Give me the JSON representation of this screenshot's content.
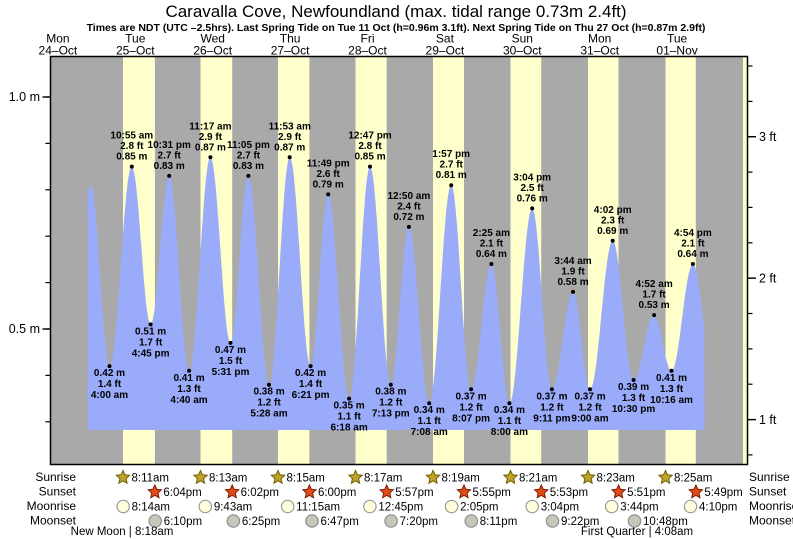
{
  "header": {
    "title": "Caravalla Cove, Newfoundland (max. tidal range 0.73m 2.4ft)",
    "subtitle": "Times are NDT (UTC –2.5hrs). Last Spring Tide on Tue 11 Oct (h=0.96m 3.1ft). Next Spring Tide on Thu 27 Oct (h=0.87m 2.9ft)"
  },
  "days": [
    {
      "dow": "Mon",
      "date": "24–Oct"
    },
    {
      "dow": "Tue",
      "date": "25–Oct"
    },
    {
      "dow": "Wed",
      "date": "26–Oct"
    },
    {
      "dow": "Thu",
      "date": "27–Oct"
    },
    {
      "dow": "Fri",
      "date": "28–Oct"
    },
    {
      "dow": "Sat",
      "date": "29–Oct"
    },
    {
      "dow": "Sun",
      "date": "30–Oct"
    },
    {
      "dow": "Mon",
      "date": "31–Oct"
    },
    {
      "dow": "Tue",
      "date": "01–Nov"
    }
  ],
  "chart_data": {
    "type": "area",
    "ylabel_left_unit": "m",
    "ylabel_right_unit": "ft",
    "ylim_m": [
      0.2,
      1.09
    ],
    "grid": false,
    "y_axis_left": {
      "ticks": [
        {
          "v": 1.0,
          "label": "1.0 m"
        },
        {
          "v": 0.5,
          "label": "0.5 m"
        }
      ],
      "minor_step_m": 0.1
    },
    "y_axis_right": {
      "ticks": [
        {
          "ft": 3,
          "label": "3 ft"
        },
        {
          "ft": 2,
          "label": "2 ft"
        },
        {
          "ft": 1,
          "label": "1 ft"
        }
      ],
      "minor_step_ft": 0.25
    },
    "tide_events": [
      {
        "day": 0,
        "time": "10:10 pm",
        "type": "high",
        "height_m": "0.81 m",
        "height_ft": "2.7 ft",
        "labeled": false
      },
      {
        "day": 1,
        "time": "4:00 am",
        "type": "low",
        "height_m": "0.42 m",
        "height_ft": "1.4 ft",
        "labeled": true
      },
      {
        "day": 1,
        "time": "10:55 am",
        "type": "high",
        "height_m": "0.85 m",
        "height_ft": "2.8 ft",
        "labeled": true
      },
      {
        "day": 1,
        "time": "4:45 pm",
        "type": "low",
        "height_m": "0.51 m",
        "height_ft": "1.7 ft",
        "labeled": true
      },
      {
        "day": 1,
        "time": "10:31 pm",
        "type": "high",
        "height_m": "0.83 m",
        "height_ft": "2.7 ft",
        "labeled": true
      },
      {
        "day": 2,
        "time": "4:40 am",
        "type": "low",
        "height_m": "0.41 m",
        "height_ft": "1.3 ft",
        "labeled": true
      },
      {
        "day": 2,
        "time": "11:17 am",
        "type": "high",
        "height_m": "0.87 m",
        "height_ft": "2.9 ft",
        "labeled": true
      },
      {
        "day": 2,
        "time": "5:31 pm",
        "type": "low",
        "height_m": "0.47 m",
        "height_ft": "1.5 ft",
        "labeled": true
      },
      {
        "day": 2,
        "time": "11:05 pm",
        "type": "high",
        "height_m": "0.83 m",
        "height_ft": "2.7 ft",
        "labeled": true
      },
      {
        "day": 3,
        "time": "5:28 am",
        "type": "low",
        "height_m": "0.38 m",
        "height_ft": "1.2 ft",
        "labeled": true
      },
      {
        "day": 3,
        "time": "11:53 am",
        "type": "high",
        "height_m": "0.87 m",
        "height_ft": "2.9 ft",
        "labeled": true
      },
      {
        "day": 3,
        "time": "6:21 pm",
        "type": "low",
        "height_m": "0.42 m",
        "height_ft": "1.4 ft",
        "labeled": true
      },
      {
        "day": 3,
        "time": "11:49 pm",
        "type": "high",
        "height_m": "0.79 m",
        "height_ft": "2.6 ft",
        "labeled": true
      },
      {
        "day": 4,
        "time": "6:18 am",
        "type": "low",
        "height_m": "0.35 m",
        "height_ft": "1.1 ft",
        "labeled": true
      },
      {
        "day": 4,
        "time": "12:47 pm",
        "type": "high",
        "height_m": "0.85 m",
        "height_ft": "2.8 ft",
        "labeled": true
      },
      {
        "day": 4,
        "time": "7:13 pm",
        "type": "low",
        "height_m": "0.38 m",
        "height_ft": "1.2 ft",
        "labeled": true
      },
      {
        "day": 5,
        "time": "12:50 am",
        "type": "high",
        "height_m": "0.72 m",
        "height_ft": "2.4 ft",
        "labeled": true
      },
      {
        "day": 5,
        "time": "7:08 am",
        "type": "low",
        "height_m": "0.34 m",
        "height_ft": "1.1 ft",
        "labeled": true
      },
      {
        "day": 5,
        "time": "1:57 pm",
        "type": "high",
        "height_m": "0.81 m",
        "height_ft": "2.7 ft",
        "labeled": true
      },
      {
        "day": 5,
        "time": "8:07 pm",
        "type": "low",
        "height_m": "0.37 m",
        "height_ft": "1.2 ft",
        "labeled": true
      },
      {
        "day": 6,
        "time": "2:25 am",
        "type": "high",
        "height_m": "0.64 m",
        "height_ft": "2.1 ft",
        "labeled": true
      },
      {
        "day": 6,
        "time": "8:00 am",
        "type": "low",
        "height_m": "0.34 m",
        "height_ft": "1.1 ft",
        "labeled": true
      },
      {
        "day": 6,
        "time": "3:04 pm",
        "type": "high",
        "height_m": "0.76 m",
        "height_ft": "2.5 ft",
        "labeled": true
      },
      {
        "day": 6,
        "time": "9:11 pm",
        "type": "low",
        "height_m": "0.37 m",
        "height_ft": "1.2 ft",
        "labeled": true
      },
      {
        "day": 7,
        "time": "3:44 am",
        "type": "high",
        "height_m": "0.58 m",
        "height_ft": "1.9 ft",
        "labeled": true
      },
      {
        "day": 7,
        "time": "9:00 am",
        "type": "low",
        "height_m": "0.37 m",
        "height_ft": "1.2 ft",
        "labeled": true
      },
      {
        "day": 7,
        "time": "4:02 pm",
        "type": "high",
        "height_m": "0.69 m",
        "height_ft": "2.3 ft",
        "labeled": true
      },
      {
        "day": 7,
        "time": "10:30 pm",
        "type": "low",
        "height_m": "0.39 m",
        "height_ft": "1.3 ft",
        "labeled": true
      },
      {
        "day": 8,
        "time": "4:52 am",
        "type": "high",
        "height_m": "0.53 m",
        "height_ft": "1.7 ft",
        "labeled": true
      },
      {
        "day": 8,
        "time": "10:16 am",
        "type": "low",
        "height_m": "0.41 m",
        "height_ft": "1.3 ft",
        "labeled": true
      },
      {
        "day": 8,
        "time": "4:54 pm",
        "type": "high",
        "height_m": "0.64 m",
        "height_ft": "2.1 ft",
        "labeled": true
      }
    ]
  },
  "astronomy": {
    "rows": [
      {
        "id": "sunrise",
        "label": "Sunrise",
        "events": [
          {
            "day": 1,
            "time": "8:11am"
          },
          {
            "day": 2,
            "time": "8:13am"
          },
          {
            "day": 3,
            "time": "8:15am"
          },
          {
            "day": 4,
            "time": "8:17am"
          },
          {
            "day": 5,
            "time": "8:19am"
          },
          {
            "day": 6,
            "time": "8:21am"
          },
          {
            "day": 7,
            "time": "8:23am"
          },
          {
            "day": 8,
            "time": "8:25am"
          }
        ]
      },
      {
        "id": "sunset",
        "label": "Sunset",
        "events": [
          {
            "day": 1,
            "time": "6:04pm"
          },
          {
            "day": 2,
            "time": "6:02pm"
          },
          {
            "day": 3,
            "time": "6:00pm"
          },
          {
            "day": 4,
            "time": "5:57pm"
          },
          {
            "day": 5,
            "time": "5:55pm"
          },
          {
            "day": 6,
            "time": "5:53pm"
          },
          {
            "day": 7,
            "time": "5:51pm"
          },
          {
            "day": 8,
            "time": "5:49pm"
          }
        ]
      },
      {
        "id": "moonrise",
        "label": "Moonrise",
        "events": [
          {
            "day": 1,
            "time": "8:14am"
          },
          {
            "day": 2,
            "time": "9:43am"
          },
          {
            "day": 3,
            "time": "11:15am"
          },
          {
            "day": 4,
            "time": "12:45pm"
          },
          {
            "day": 5,
            "time": "2:05pm"
          },
          {
            "day": 6,
            "time": "3:04pm"
          },
          {
            "day": 7,
            "time": "3:44pm"
          },
          {
            "day": 8,
            "time": "4:10pm"
          }
        ]
      },
      {
        "id": "moonset",
        "label": "Moonset",
        "events": [
          {
            "day": 1,
            "time": "6:10pm"
          },
          {
            "day": 2,
            "time": "6:25pm"
          },
          {
            "day": 3,
            "time": "6:47pm"
          },
          {
            "day": 4,
            "time": "7:20pm"
          },
          {
            "day": 5,
            "time": "8:11pm"
          },
          {
            "day": 6,
            "time": "9:22pm"
          },
          {
            "day": 7,
            "time": "10:48pm"
          }
        ]
      }
    ],
    "notes": [
      {
        "text": "New Moon | 8:18am"
      },
      {
        "text": "First Quarter | 4:08am"
      }
    ]
  },
  "colors": {
    "page_background": "#ffffff",
    "night_band": "#a9a9a9",
    "day_band": "#ffffcc",
    "tide_fill": "#9aabfa",
    "day_label": "#e13026",
    "axis": "#000000",
    "text": "#000000",
    "sunrise_star": "#bfa32a",
    "sunrise_star_edge": "#6f5f00",
    "sunset_star": "#e04a18",
    "sunset_star_edge": "#7d1f00",
    "moonrise_fill": "#ffffdc",
    "moonrise_edge": "#999999",
    "moonset_fill": "#c6c6ba",
    "moonset_edge": "#8d8d8d"
  }
}
